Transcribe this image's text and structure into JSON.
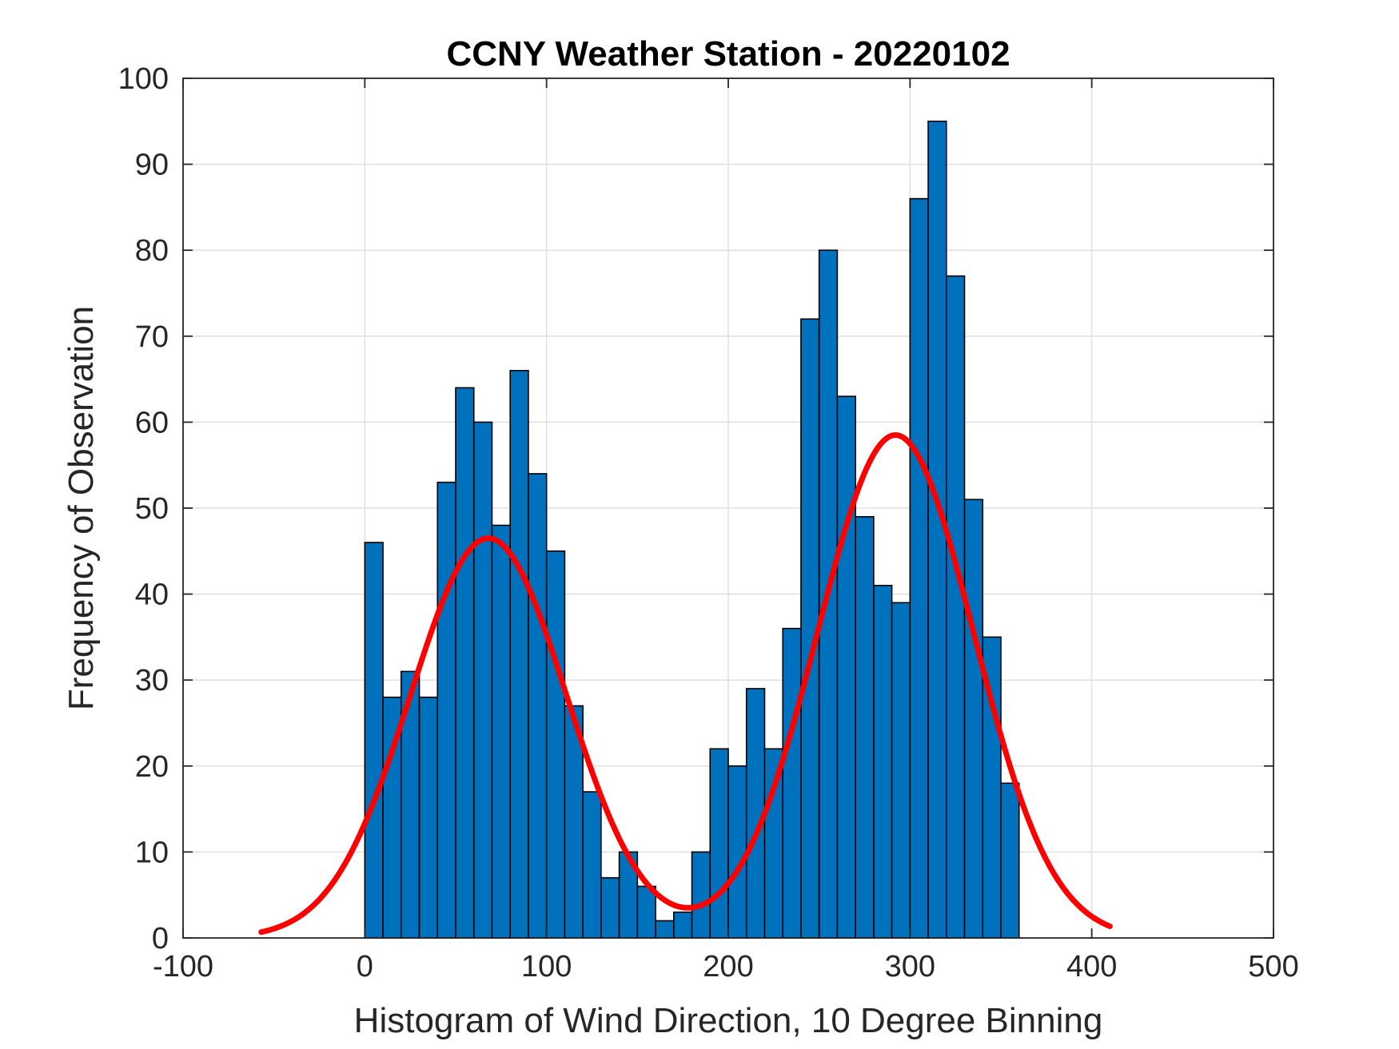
{
  "chart_data": {
    "type": "bar",
    "title": "CCNY Weather Station - 20220102",
    "xlabel": "Histogram of Wind Direction, 10 Degree Binning",
    "ylabel": "Frequency of Observation",
    "xlim": [
      -100,
      500
    ],
    "ylim": [
      0,
      100
    ],
    "xticks": [
      -100,
      0,
      100,
      200,
      300,
      400,
      500
    ],
    "yticks": [
      0,
      10,
      20,
      30,
      40,
      50,
      60,
      70,
      80,
      90,
      100
    ],
    "grid": true,
    "bin_width": 10,
    "bin_edges_start": [
      0,
      10,
      20,
      30,
      40,
      50,
      60,
      70,
      80,
      90,
      100,
      110,
      120,
      130,
      140,
      150,
      160,
      170,
      180,
      190,
      200,
      210,
      220,
      230,
      240,
      250,
      260,
      270,
      280,
      290,
      300,
      310,
      320,
      330,
      340,
      350
    ],
    "values": [
      46,
      28,
      31,
      28,
      53,
      64,
      60,
      48,
      66,
      54,
      45,
      27,
      17,
      7,
      10,
      6,
      2,
      3,
      10,
      22,
      20,
      29,
      22,
      36,
      72,
      80,
      63,
      49,
      41,
      39,
      86,
      95,
      77,
      51,
      35,
      18
    ],
    "fit_curve": {
      "name": "two-component gaussian fit",
      "x_range": [
        -57,
        410
      ],
      "components": [
        {
          "mean": 68,
          "sigma": 43,
          "peak": 46.5
        },
        {
          "mean": 292,
          "sigma": 43,
          "peak": 58.5
        }
      ]
    },
    "colors": {
      "bar_fill": "#0072BD",
      "bar_edge": "#000000",
      "fit_line": "#FF0000",
      "grid": "#DFDFDF",
      "axis": "#262626"
    }
  }
}
